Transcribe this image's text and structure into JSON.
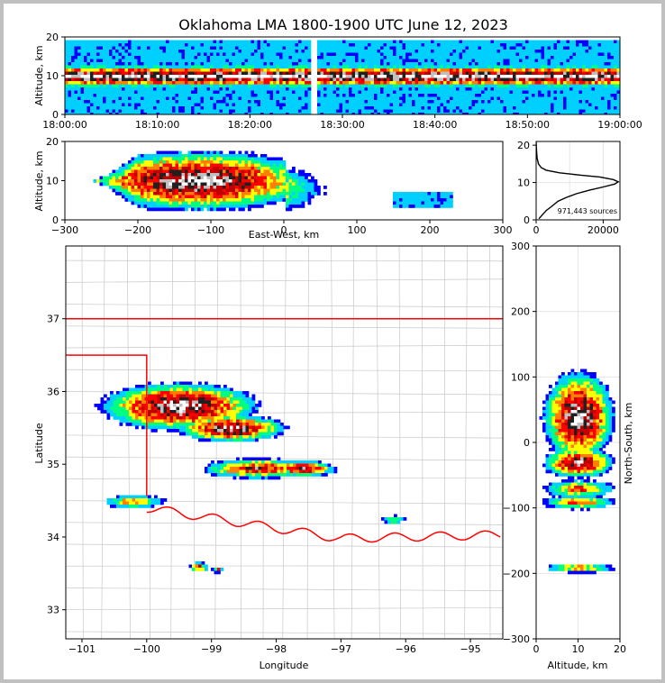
{
  "chart_data": {
    "type": "heatmap",
    "title": "Oklahoma LMA 1800-1900 UTC June 12, 2023",
    "colors": {
      "density_scale": [
        "#0000ff",
        "#00d0ff",
        "#00ff80",
        "#ffff00",
        "#ff8000",
        "#ff0000",
        "#c00000",
        "#202020",
        "#c0c0c0",
        "#ffffff"
      ],
      "state_border": "#ff0000",
      "county_lines": "#c8c8c8",
      "profile_line": "#000000"
    },
    "panels": {
      "time_altitude": {
        "ylabel": "Altitude, km",
        "ylim": [
          0,
          20
        ],
        "yticks": [
          "0",
          "10",
          "20"
        ],
        "xlim": [
          "18:00:00",
          "19:00:00"
        ],
        "xticks": [
          "18:00:00",
          "18:10:00",
          "18:20:00",
          "18:30:00",
          "18:40:00",
          "18:50:00",
          "19:00:00"
        ],
        "core_altitude_range_km": [
          8,
          12
        ]
      },
      "ew_altitude": {
        "xlabel": "East-West, km",
        "ylabel": "Altitude, km",
        "xlim": [
          -300,
          300
        ],
        "ylim": [
          0,
          20
        ],
        "xticks": [
          "−300",
          "−200",
          "−100",
          "0",
          "100",
          "200",
          "300"
        ],
        "yticks": [
          "0",
          "10",
          "20"
        ]
      },
      "altitude_histogram": {
        "xlim": [
          0,
          25000
        ],
        "ylim": [
          0,
          21
        ],
        "xticks": [
          "0",
          "20000"
        ],
        "yticks": [
          "0",
          "10",
          "20"
        ],
        "annotation": "971,443 sources",
        "profile": [
          [
            800,
            0.3
          ],
          [
            2000,
            1.5
          ],
          [
            3000,
            2.5
          ],
          [
            4500,
            3.5
          ],
          [
            6500,
            5
          ],
          [
            9000,
            6
          ],
          [
            12000,
            7
          ],
          [
            16000,
            8
          ],
          [
            20000,
            8.8
          ],
          [
            23500,
            9.6
          ],
          [
            24500,
            10.2
          ],
          [
            23000,
            10.8
          ],
          [
            19000,
            11.5
          ],
          [
            13000,
            12
          ],
          [
            7000,
            12.6
          ],
          [
            3000,
            13.3
          ],
          [
            1500,
            14
          ],
          [
            700,
            15
          ],
          [
            300,
            16.5
          ],
          [
            150,
            18
          ],
          [
            50,
            19.5
          ],
          [
            0,
            21
          ]
        ]
      },
      "plan_view": {
        "xlabel": "Longitude",
        "ylabel": "Latitude",
        "xlim": [
          -101.25,
          -94.5
        ],
        "ylim": [
          32.6,
          38.0
        ],
        "xticks": [
          "−101",
          "−100",
          "−99",
          "−98",
          "−97",
          "−96",
          "−95"
        ],
        "yticks": [
          "33",
          "34",
          "35",
          "36",
          "37"
        ]
      },
      "ns_altitude": {
        "xlabel": "Altitude, km",
        "ylabel": "North-South, km",
        "xlim": [
          0,
          20
        ],
        "ylim": [
          -300,
          300
        ],
        "xticks": [
          "0",
          "10",
          "20"
        ],
        "yticks": [
          "−300",
          "−200",
          "−100",
          "0",
          "100",
          "200",
          "300"
        ]
      }
    }
  }
}
